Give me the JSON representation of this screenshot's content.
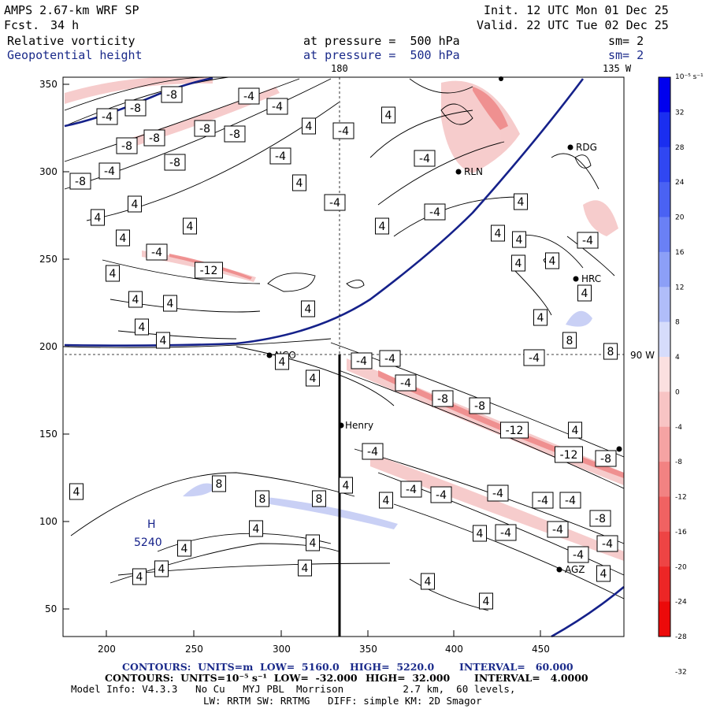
{
  "header": {
    "model": "AMPS 2.67-km WRF SP",
    "fcst_label": "Fcst.",
    "fcst_value": "34 h",
    "init": "Init. 12 UTC Mon 01 Dec 25",
    "valid": "Valid. 22 UTC Tue 02 Dec 25",
    "field1": "Relative vorticity",
    "field2": "Geopotential height",
    "pressure1": "at pressure =  500 hPa",
    "pressure2": "at pressure =  500 hPa",
    "sm1": "sm= 2",
    "sm2": "sm= 2"
  },
  "axes": {
    "x_ticks": [
      "200",
      "250",
      "300",
      "350",
      "400",
      "450"
    ],
    "y_ticks": [
      "350",
      "300",
      "250",
      "200",
      "150",
      "100",
      "50"
    ],
    "top_lon_180": "180",
    "top_lon_135": "135 W",
    "right_lon_90": "90 W"
  },
  "stations": [
    {
      "name": "RDG"
    },
    {
      "name": "RLN"
    },
    {
      "name": "HRC"
    },
    {
      "name": "NCO"
    },
    {
      "name": "Henry"
    },
    {
      "name": "AGZ"
    }
  ],
  "high": {
    "letter": "H",
    "value": "5240"
  },
  "contour_labels": {
    "c4": "4",
    "cm4": "-4",
    "c8": "8",
    "cm8": "-8",
    "cm12": "-12"
  },
  "colorbar": {
    "unit": "10⁻⁵ s⁻¹",
    "ticks": [
      "32",
      "28",
      "24",
      "20",
      "16",
      "12",
      "8",
      "4",
      "0",
      "-4",
      "-8",
      "-12",
      "-16",
      "-20",
      "-24",
      "-28",
      "-32"
    ],
    "colors": [
      "#0000ee",
      "#1a2ef0",
      "#3047f2",
      "#4a62f3",
      "#6a80f5",
      "#8c9ff7",
      "#b0bdf9",
      "#d6dcfb",
      "#fbe0e0",
      "#f8c4c4",
      "#f5a3a3",
      "#f28282",
      "#f06262",
      "#ee4444",
      "#ed2626",
      "#ec0a0a"
    ]
  },
  "footer": {
    "line1_a": "CONTOURS:  UNITS=m  LOW=  5160.0",
    "line1_b": "HIGH=  5220.0",
    "line1_c": "INTERVAL=   60.000",
    "line2_a": "CONTOURS:  UNITS=10⁻⁵ s⁻¹  LOW=  -32.000",
    "line2_b": "HIGH=  32.000",
    "line2_c": "INTERVAL=   4.0000",
    "line3": "Model Info: V4.3.3   No Cu   MYJ PBL  Morrison          2.7 km,  60 levels,",
    "line4": "LW: RRTM SW: RRTMG   DIFF: simple KM: 2D Smagor"
  }
}
